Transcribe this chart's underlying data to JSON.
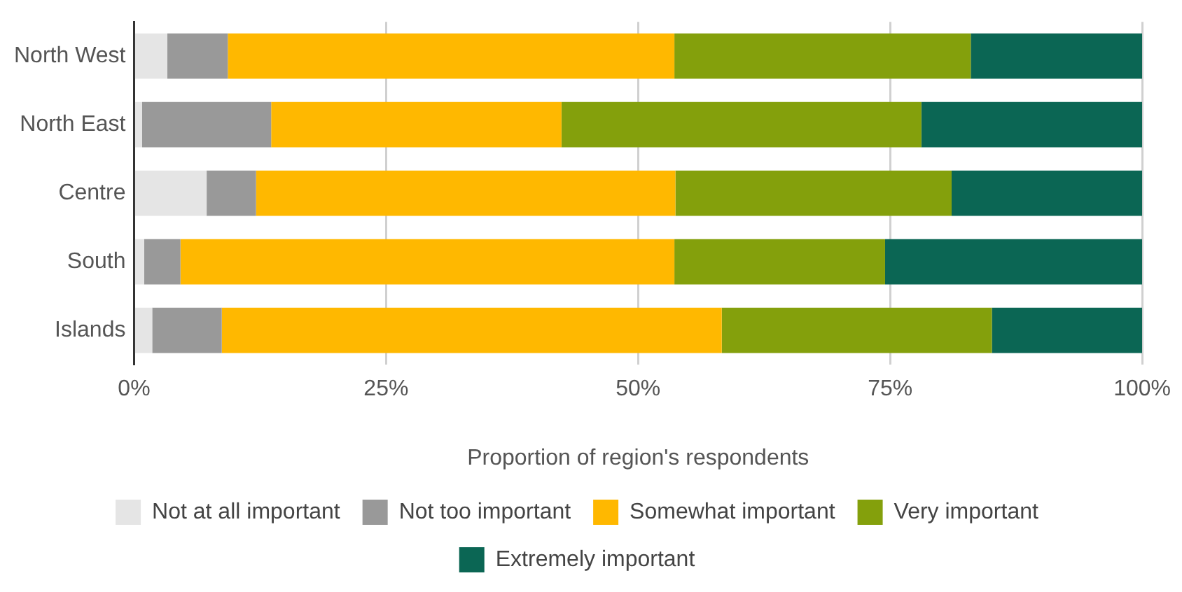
{
  "chart_data": {
    "type": "bar",
    "orientation": "horizontal",
    "stacked": true,
    "categories": [
      "North West",
      "North East",
      "Centre",
      "South",
      "Islands"
    ],
    "series": [
      {
        "name": "Not at all important",
        "color": "#e5e5e5",
        "values": [
          3.3,
          0.8,
          7.2,
          1.0,
          1.8
        ]
      },
      {
        "name": "Not too important",
        "color": "#999999",
        "values": [
          6.0,
          12.8,
          4.9,
          3.6,
          6.9
        ]
      },
      {
        "name": "Somewhat important",
        "color": "#ffb800",
        "values": [
          44.3,
          28.8,
          41.6,
          49.0,
          49.6
        ]
      },
      {
        "name": "Very important",
        "color": "#84a00c",
        "values": [
          29.4,
          35.7,
          27.4,
          20.9,
          26.8
        ]
      },
      {
        "name": "Extremely important",
        "color": "#0b6654",
        "values": [
          17.0,
          21.9,
          18.9,
          25.5,
          14.9
        ]
      }
    ],
    "xlim": [
      0,
      100
    ],
    "xticks": [
      {
        "value": 0,
        "label": "0%"
      },
      {
        "value": 25,
        "label": "25%"
      },
      {
        "value": 50,
        "label": "50%"
      },
      {
        "value": 75,
        "label": "75%"
      },
      {
        "value": 100,
        "label": "100%"
      }
    ],
    "xlabel": "Proportion of region's respondents",
    "grid": "x",
    "legend": "bottom"
  }
}
